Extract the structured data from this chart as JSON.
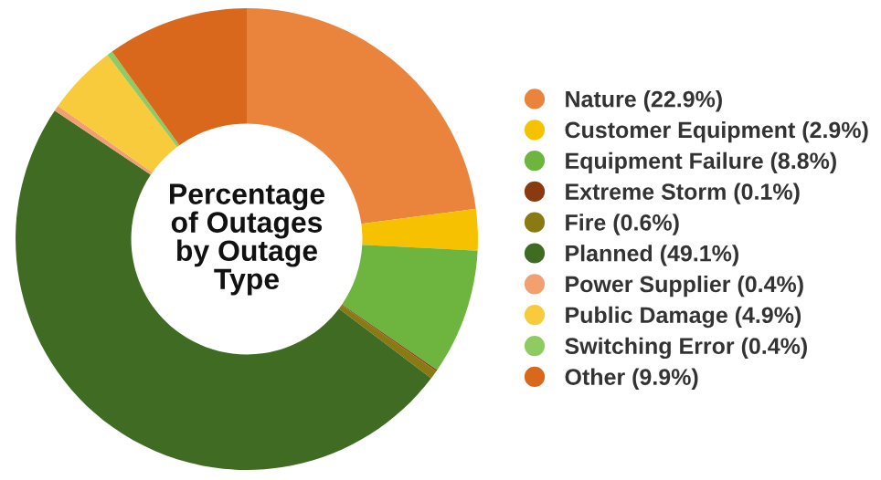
{
  "chart_data": {
    "type": "donut",
    "title": "Percentage of Outages by Outage Type",
    "categories": [
      "Nature (22.9%)",
      "Customer Equipment (2.9%)",
      "Equipment Failure (8.8%)",
      "Extreme Storm (0.1%)",
      "Fire (0.6%)",
      "Planned (49.1%)",
      "Power Supplier (0.4%)",
      "Public Damage (4.9%)",
      "Switching Error (0.4%)",
      "Other (9.9%)"
    ],
    "values": [
      22.9,
      2.9,
      8.8,
      0.1,
      0.6,
      49.1,
      0.4,
      4.9,
      0.4,
      9.9
    ],
    "colors": [
      "#ea843c",
      "#f6c200",
      "#6db53e",
      "#8a3a10",
      "#8a7a14",
      "#3f6b23",
      "#f2a070",
      "#f8cb3c",
      "#8ecb62",
      "#d9671c"
    ],
    "legend": "right"
  }
}
